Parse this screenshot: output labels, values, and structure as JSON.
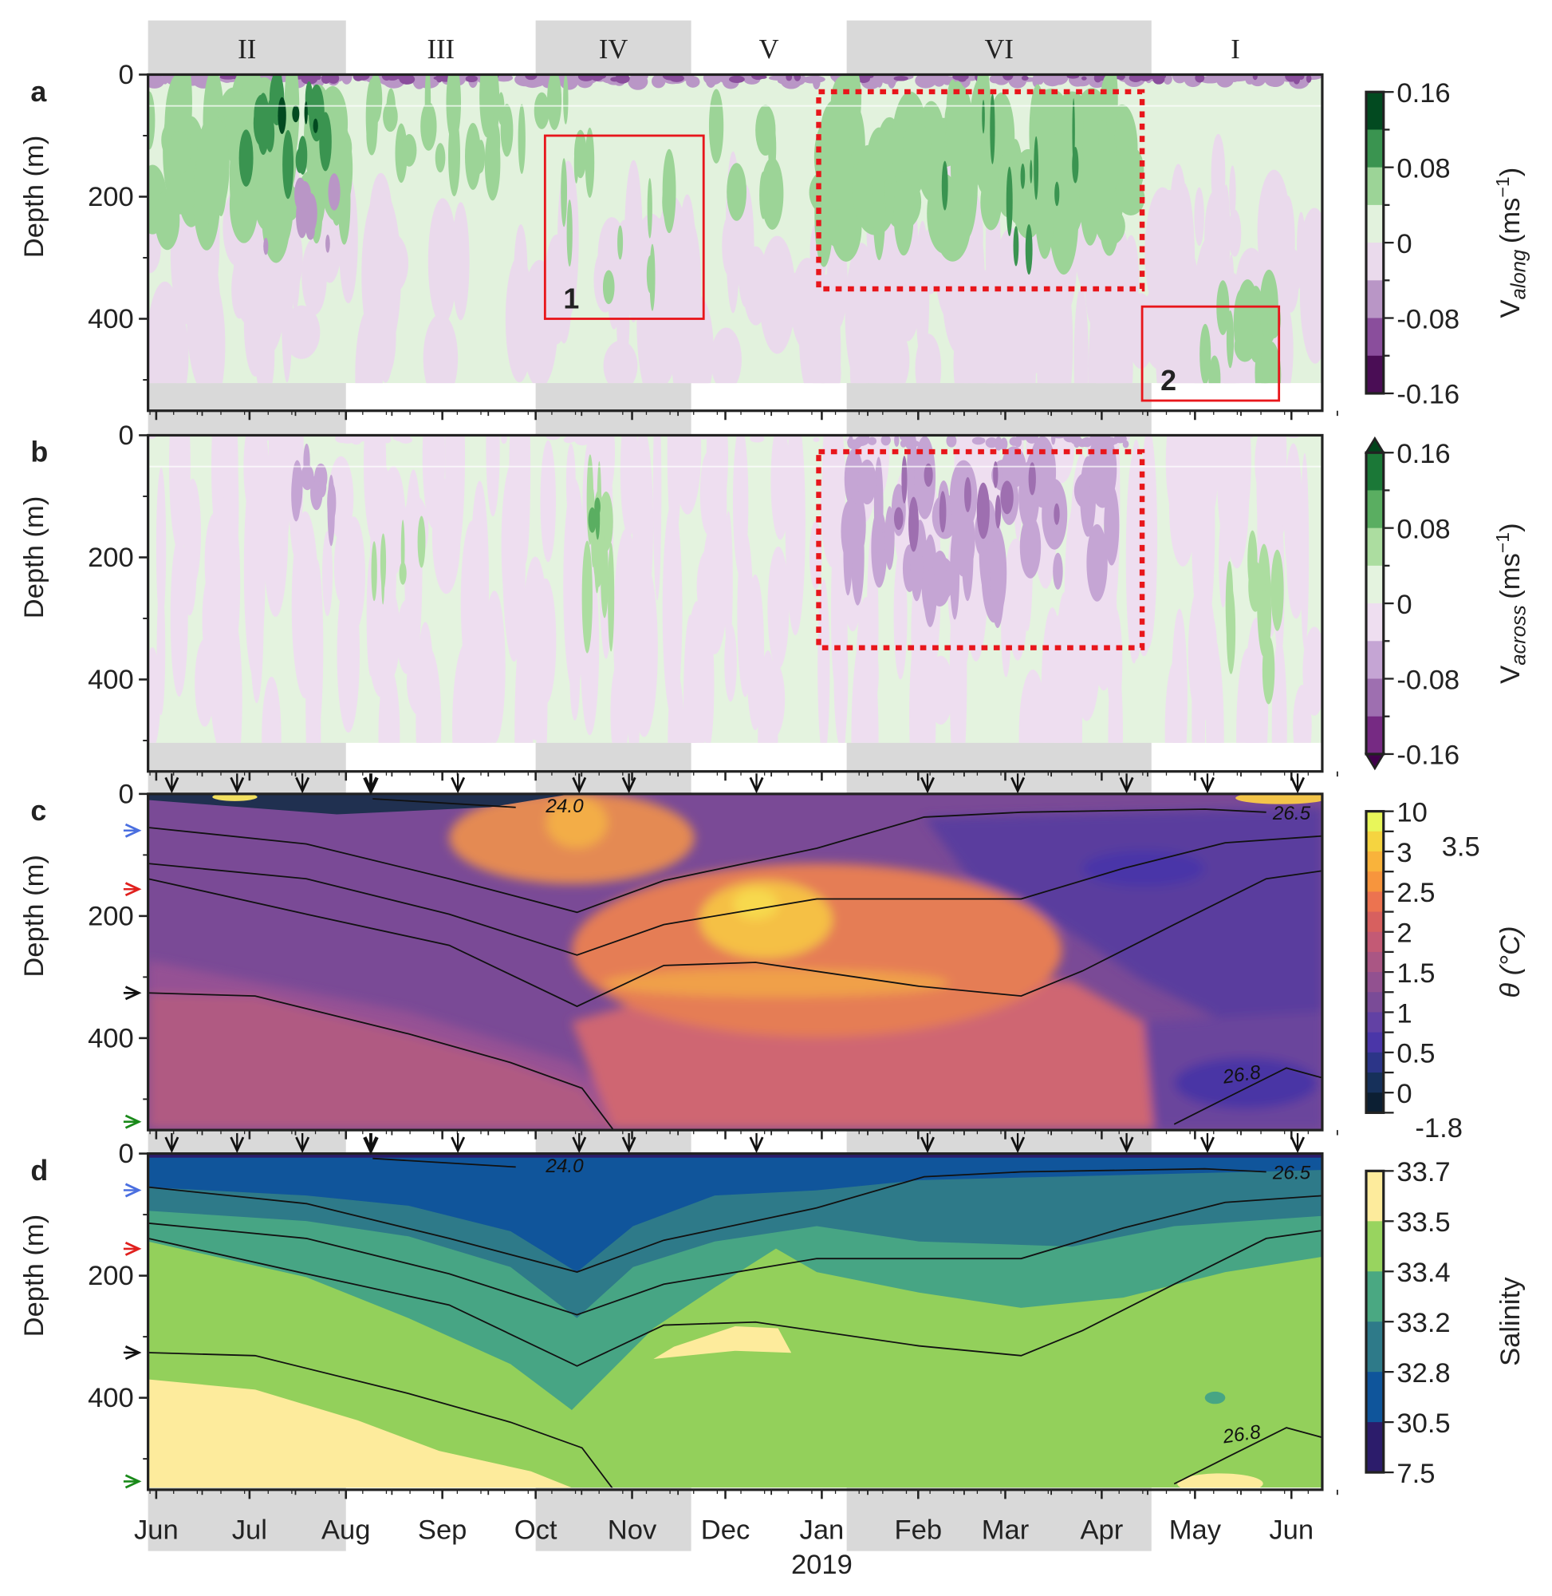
{
  "chart_data": {
    "type": "heatmap",
    "time_axis": {
      "month_ticks": [
        {
          "date": "2018-06-01",
          "label": "Jun"
        },
        {
          "date": "2018-07-01",
          "label": "Jul"
        },
        {
          "date": "2018-08-01",
          "label": "Aug"
        },
        {
          "date": "2018-09-01",
          "label": "Sep"
        },
        {
          "date": "2018-10-01",
          "label": "Oct"
        },
        {
          "date": "2018-11-01",
          "label": "Nov"
        },
        {
          "date": "2018-12-01",
          "label": "Dec"
        },
        {
          "date": "2019-01-01",
          "label": "Jan"
        },
        {
          "date": "2019-02-01",
          "label": "Feb"
        },
        {
          "date": "2019-03-01",
          "label": "Mar"
        },
        {
          "date": "2019-04-01",
          "label": "Apr"
        },
        {
          "date": "2019-05-01",
          "label": "May"
        },
        {
          "date": "2019-06-01",
          "label": "Jun"
        }
      ],
      "year_label": "2019",
      "xlim": [
        "2018-05-29",
        "2019-06-10"
      ]
    },
    "seasons": [
      {
        "label": "II",
        "start": "2018-05-29",
        "end": "2018-08-01",
        "shaded": true
      },
      {
        "label": "III",
        "start": "2018-08-01",
        "end": "2018-10-01",
        "shaded": false
      },
      {
        "label": "IV",
        "start": "2018-10-01",
        "end": "2018-11-20",
        "shaded": true
      },
      {
        "label": "V",
        "start": "2018-11-20",
        "end": "2019-01-09",
        "shaded": false
      },
      {
        "label": "VI",
        "start": "2019-01-09",
        "end": "2019-04-17",
        "shaded": true
      },
      {
        "label": "I",
        "start": "2019-04-17",
        "end": "2019-06-10",
        "shaded": false
      }
    ],
    "depth_axis": {
      "label": "Depth (m)",
      "ticks": [
        0,
        200,
        400
      ],
      "minor_ticks": [
        100,
        300,
        500
      ],
      "inverted": true
    },
    "panels": [
      {
        "letter": "a",
        "variable": "V_along",
        "max_depth": 505,
        "colorbar": {
          "symbol": "V",
          "subscript": "along",
          "unit_open": "(ms",
          "unit_exp": "−1",
          "unit_close": ")",
          "labels": [
            "0.16",
            "0.08",
            "0",
            "-0.08",
            "-0.16"
          ],
          "colors": [
            "#024a20",
            "#3a9450",
            "#9cd497",
            "#e2f2dd",
            "#eadaec",
            "#b996c6",
            "#8a4e9c",
            "#4a0d55"
          ],
          "extend": false
        },
        "boxes": [
          {
            "style": "solid",
            "start": "2018-10-04",
            "end": "2018-11-24",
            "depth": [
              100,
              400
            ],
            "label": "1"
          },
          {
            "style": "solid",
            "start": "2019-04-14",
            "end": "2019-05-28",
            "depth": [
              380,
              534
            ],
            "label": "2"
          },
          {
            "style": "dotted",
            "start": "2018-12-31",
            "end": "2019-04-14",
            "depth": [
              28,
              351
            ],
            "label": ""
          }
        ]
      },
      {
        "letter": "b",
        "variable": "V_across",
        "max_depth": 505,
        "colorbar": {
          "symbol": "V",
          "subscript": "across",
          "unit_open": "(ms",
          "unit_exp": "−1",
          "unit_close": ")",
          "labels": [
            "0.16",
            "0.08",
            "0",
            "-0.08",
            "-0.16"
          ],
          "colors": [
            "#1b7837",
            "#5aae61",
            "#acdda0",
            "#e4f3df",
            "#eedef0",
            "#c5a5d4",
            "#9e6fb0",
            "#762a83"
          ],
          "extend": true
        },
        "boxes": [
          {
            "style": "dotted",
            "start": "2018-12-31",
            "end": "2019-04-14",
            "depth": [
              27,
              348
            ],
            "label": ""
          }
        ]
      },
      {
        "letter": "c",
        "variable": "theta",
        "max_depth": 548,
        "colorbar": {
          "symbol": "θ (°C)",
          "labels": [
            {
              "t": "10",
              "i": 0
            },
            {
              "t": "3.5",
              "i": 1,
              "offset": true
            },
            {
              "t": "3",
              "i": 2
            },
            {
              "t": "2.5",
              "i": 4
            },
            {
              "t": "2",
              "i": 6
            },
            {
              "t": "1.5",
              "i": 8
            },
            {
              "t": "1",
              "i": 10
            },
            {
              "t": "0.5",
              "i": 12
            },
            {
              "t": "0",
              "i": 14
            },
            {
              "t": "-1.8",
              "i": 15,
              "offset": true
            }
          ],
          "colors": [
            "#e8f65a",
            "#f5d440",
            "#f9b33b",
            "#f7953d",
            "#ec7350",
            "#d7605f",
            "#c35a75",
            "#aa5684",
            "#925190",
            "#7a4b97",
            "#6241a4",
            "#4a36a8",
            "#2c3588",
            "#16305a",
            "#0c1f33"
          ]
        }
      },
      {
        "letter": "d",
        "variable": "salinity",
        "max_depth": 548,
        "colorbar": {
          "symbol": "Salinity",
          "labels": [
            "33.7",
            "33.5",
            "33.4",
            "33.2",
            "32.8",
            "30.5",
            "7.5"
          ],
          "colors": [
            "#fdeb9c",
            "#98d45f",
            "#4aa882",
            "#2e7a89",
            "#0f559b",
            "#2c1c6b"
          ]
        }
      }
    ],
    "isopycnals_days_since_2018_06_01": [
      {
        "label": "24.0",
        "points": [
          [
            69.6,
            8
          ],
          [
            115.6,
            22
          ]
        ]
      },
      {
        "label": "26.5",
        "points": [
          [
            -2.6,
            55
          ],
          [
            48.3,
            82
          ],
          [
            94.2,
            139
          ],
          [
            135.3,
            194
          ],
          [
            163.2,
            142
          ],
          [
            212.4,
            89
          ],
          [
            246.9,
            38
          ],
          [
            278.1,
            30
          ],
          [
            337.2,
            25
          ],
          [
            356.9,
            30
          ]
        ]
      },
      {
        "label": "",
        "points": [
          [
            -2.6,
            114
          ],
          [
            48.3,
            139
          ],
          [
            94.2,
            197
          ],
          [
            135.3,
            264
          ],
          [
            163.2,
            214
          ],
          [
            212.4,
            172
          ],
          [
            278.1,
            172
          ],
          [
            310.9,
            122
          ],
          [
            343.7,
            80
          ],
          [
            374.9,
            69
          ]
        ]
      },
      {
        "label": "",
        "points": [
          [
            -2.6,
            139
          ],
          [
            48.3,
            197
          ],
          [
            94.2,
            248
          ],
          [
            135.3,
            348
          ],
          [
            163.2,
            281
          ],
          [
            192.7,
            276
          ],
          [
            245.2,
            315
          ],
          [
            278.1,
            331
          ],
          [
            297.8,
            290
          ],
          [
            327.3,
            214
          ],
          [
            356.9,
            139
          ],
          [
            374.9,
            126
          ]
        ]
      },
      {
        "label": "",
        "points": [
          [
            -2.6,
            326
          ],
          [
            31.8,
            331
          ],
          [
            81.1,
            393
          ],
          [
            113.9,
            440
          ],
          [
            136.9,
            482
          ],
          [
            146.8,
            549
          ]
        ]
      },
      {
        "label": "26.8",
        "points": [
          [
            327.3,
            541
          ],
          [
            343.7,
            499
          ],
          [
            363.4,
            449
          ],
          [
            374.9,
            465
          ]
        ]
      }
    ],
    "profile_markers": [
      {
        "date": "2018-06-06"
      },
      {
        "date": "2018-06-27"
      },
      {
        "date": "2018-07-18"
      },
      {
        "date": "2018-08-09",
        "bold": true
      },
      {
        "date": "2018-09-06"
      },
      {
        "date": "2018-10-15"
      },
      {
        "date": "2018-10-31"
      },
      {
        "date": "2018-12-11"
      },
      {
        "date": "2019-02-04"
      },
      {
        "date": "2019-03-05"
      },
      {
        "date": "2019-04-09"
      },
      {
        "date": "2019-05-05"
      },
      {
        "date": "2019-06-03"
      }
    ],
    "depth_markers": [
      {
        "depth": 60,
        "color": "#4a6fe0"
      },
      {
        "depth": 156,
        "color": "#e0201e"
      },
      {
        "depth": 326,
        "color": "#111111"
      },
      {
        "depth": 537,
        "color": "#1a8a1a"
      }
    ]
  }
}
